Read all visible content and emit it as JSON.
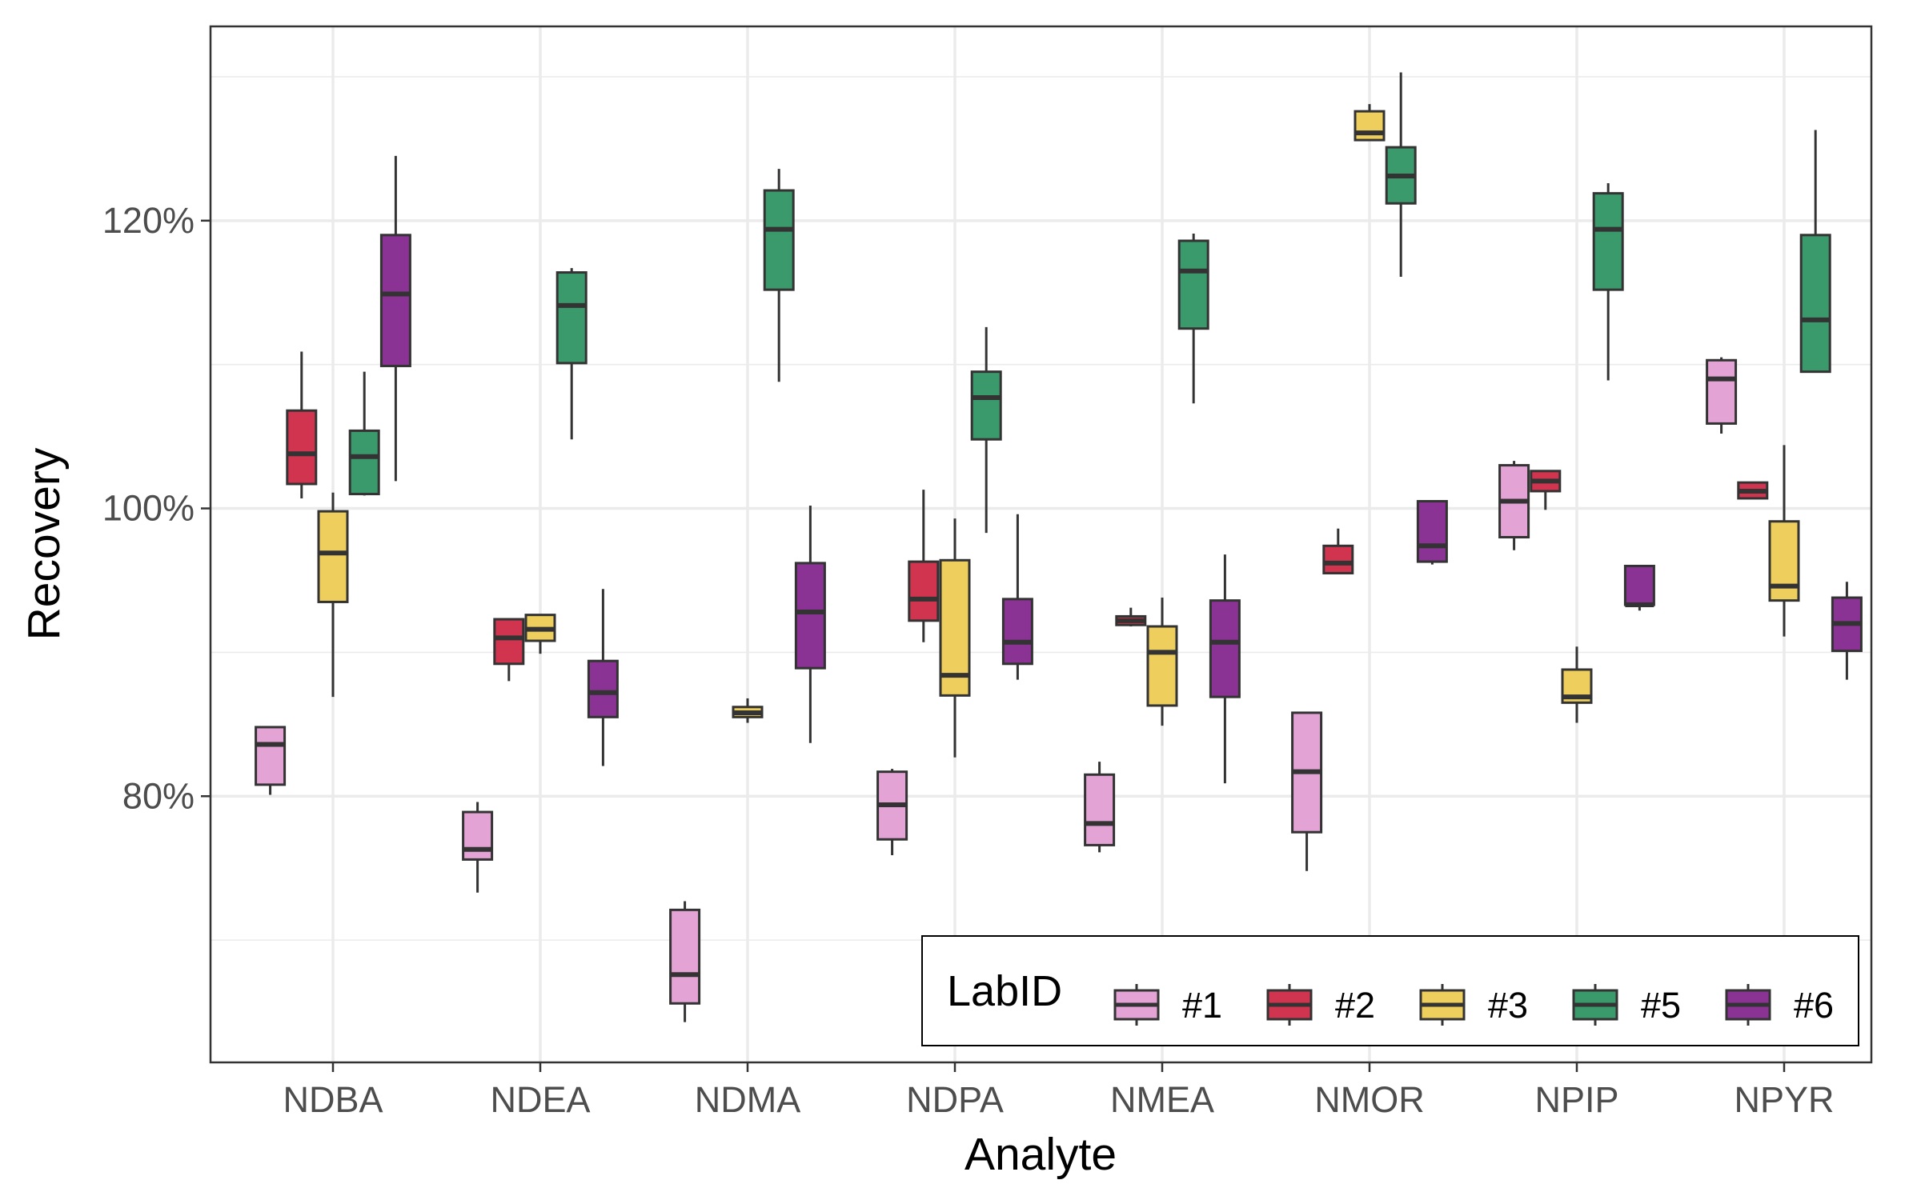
{
  "chart_data": {
    "type": "boxplot",
    "xlabel": "Analyte",
    "ylabel": "Recovery",
    "ylim": [
      61.5,
      133.5
    ],
    "yticks": [
      {
        "value": 80,
        "label": "80%"
      },
      {
        "value": 100,
        "label": "100%"
      },
      {
        "value": 120,
        "label": "120%"
      }
    ],
    "minor_gridlines": [
      70,
      90,
      110,
      130
    ],
    "grid": true,
    "categories": [
      "NDBA",
      "NDEA",
      "NDMA",
      "NDPA",
      "NMEA",
      "NMOR",
      "NPIP",
      "NPYR"
    ],
    "legend": {
      "title": "LabID",
      "position": "bottom-right"
    },
    "series": [
      {
        "name": "#1",
        "color": "#E3A3D5",
        "values": [
          {
            "min": 80.1,
            "q1": 80.8,
            "median": 83.6,
            "q3": 84.8,
            "max": 84.8
          },
          {
            "min": 73.3,
            "q1": 75.6,
            "median": 76.3,
            "q3": 78.9,
            "max": 79.6
          },
          {
            "min": 64.3,
            "q1": 65.6,
            "median": 67.6,
            "q3": 72.1,
            "max": 72.7
          },
          {
            "min": 75.9,
            "q1": 77.0,
            "median": 79.4,
            "q3": 81.7,
            "max": 81.9
          },
          {
            "min": 76.1,
            "q1": 76.6,
            "median": 78.1,
            "q3": 81.5,
            "max": 82.4
          },
          {
            "min": 74.8,
            "q1": 77.5,
            "median": 81.7,
            "q3": 85.8,
            "max": 85.8
          },
          {
            "min": 97.1,
            "q1": 98.0,
            "median": 100.5,
            "q3": 103.0,
            "max": 103.3
          },
          {
            "min": 105.2,
            "q1": 105.9,
            "median": 109.0,
            "q3": 110.3,
            "max": 110.5
          }
        ]
      },
      {
        "name": "#2",
        "color": "#D0344E",
        "values": [
          {
            "min": 100.7,
            "q1": 101.7,
            "median": 103.8,
            "q3": 106.8,
            "max": 110.9
          },
          {
            "min": 88.0,
            "q1": 89.2,
            "median": 91.0,
            "q3": 92.3,
            "max": 92.3
          },
          null,
          {
            "min": 90.7,
            "q1": 92.2,
            "median": 93.7,
            "q3": 96.3,
            "max": 101.3
          },
          {
            "min": 91.8,
            "q1": 91.9,
            "median": 92.2,
            "q3": 92.5,
            "max": 93.1
          },
          {
            "min": 95.5,
            "q1": 95.5,
            "median": 96.2,
            "q3": 97.4,
            "max": 98.6
          },
          {
            "min": 99.9,
            "q1": 101.2,
            "median": 101.9,
            "q3": 102.6,
            "max": 102.6
          },
          {
            "min": 100.7,
            "q1": 100.7,
            "median": 101.2,
            "q3": 101.8,
            "max": 101.8
          }
        ]
      },
      {
        "name": "#3",
        "color": "#EECE5C",
        "values": [
          {
            "min": 86.9,
            "q1": 93.5,
            "median": 96.9,
            "q3": 99.8,
            "max": 101.1
          },
          {
            "min": 89.9,
            "q1": 90.8,
            "median": 91.6,
            "q3": 92.6,
            "max": 92.6
          },
          {
            "min": 85.1,
            "q1": 85.5,
            "median": 85.8,
            "q3": 86.2,
            "max": 86.8
          },
          {
            "min": 82.7,
            "q1": 87.0,
            "median": 88.4,
            "q3": 96.4,
            "max": 99.3
          },
          {
            "min": 84.9,
            "q1": 86.3,
            "median": 90.0,
            "q3": 91.8,
            "max": 93.8
          },
          {
            "min": 125.6,
            "q1": 125.6,
            "median": 126.1,
            "q3": 127.6,
            "max": 128.1
          },
          {
            "min": 85.1,
            "q1": 86.5,
            "median": 86.9,
            "q3": 88.8,
            "max": 90.4
          },
          {
            "min": 91.1,
            "q1": 93.6,
            "median": 94.6,
            "q3": 99.1,
            "max": 104.4
          }
        ]
      },
      {
        "name": "#5",
        "color": "#3A9A6C",
        "values": [
          {
            "min": 100.9,
            "q1": 101.0,
            "median": 103.6,
            "q3": 105.4,
            "max": 109.5
          },
          {
            "min": 104.8,
            "q1": 110.1,
            "median": 114.1,
            "q3": 116.4,
            "max": 116.7
          },
          {
            "min": 108.8,
            "q1": 115.2,
            "median": 119.4,
            "q3": 122.1,
            "max": 123.6
          },
          {
            "min": 98.3,
            "q1": 104.8,
            "median": 107.7,
            "q3": 109.5,
            "max": 112.6
          },
          {
            "min": 107.3,
            "q1": 112.5,
            "median": 116.5,
            "q3": 118.6,
            "max": 119.1
          },
          {
            "min": 116.1,
            "q1": 121.2,
            "median": 123.1,
            "q3": 125.1,
            "max": 130.3
          },
          {
            "min": 108.9,
            "q1": 115.2,
            "median": 119.4,
            "q3": 121.9,
            "max": 122.6
          },
          {
            "min": 109.5,
            "q1": 109.5,
            "median": 113.1,
            "q3": 119.0,
            "max": 126.3
          }
        ]
      },
      {
        "name": "#6",
        "color": "#8B3394",
        "values": [
          {
            "min": 101.9,
            "q1": 109.9,
            "median": 114.9,
            "q3": 119.0,
            "max": 124.5
          },
          {
            "min": 82.1,
            "q1": 85.5,
            "median": 87.2,
            "q3": 89.4,
            "max": 94.4
          },
          {
            "min": 83.7,
            "q1": 88.9,
            "median": 92.8,
            "q3": 96.2,
            "max": 100.2
          },
          {
            "min": 88.1,
            "q1": 89.2,
            "median": 90.7,
            "q3": 93.7,
            "max": 99.6
          },
          {
            "min": 80.9,
            "q1": 86.9,
            "median": 90.7,
            "q3": 93.6,
            "max": 96.8
          },
          {
            "min": 96.1,
            "q1": 96.3,
            "median": 97.4,
            "q3": 100.5,
            "max": 100.5
          },
          {
            "min": 92.9,
            "q1": 93.3,
            "median": 93.3,
            "q3": 96.0,
            "max": 96.0
          },
          {
            "min": 88.1,
            "q1": 90.1,
            "median": 92.0,
            "q3": 93.8,
            "max": 94.9
          }
        ]
      }
    ]
  }
}
